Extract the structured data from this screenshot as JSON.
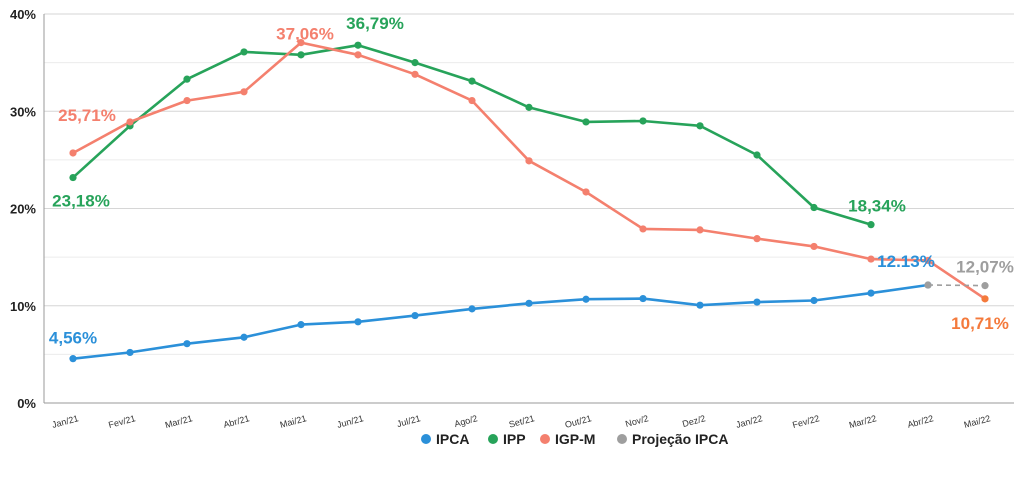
{
  "chart_data": {
    "type": "line",
    "categories": [
      "Jan/21",
      "Fev/21",
      "Mar/21",
      "Abr/21",
      "Mai/21",
      "Jun/21",
      "Jul/21",
      "Ago/2",
      "Set/21",
      "Out/21",
      "Nov/2",
      "Dez/2",
      "Jan/22",
      "Fev/22",
      "Mar/22",
      "Abr/22",
      "Mai/22"
    ],
    "ylim": [
      0,
      40
    ],
    "yticks": [
      {
        "value": 0,
        "label": "0%"
      },
      {
        "value": 10,
        "label": "10%"
      },
      {
        "value": 20,
        "label": "20%"
      },
      {
        "value": 30,
        "label": "30%"
      },
      {
        "value": 40,
        "label": "40%"
      }
    ],
    "grid": true,
    "legend_position": "bottom",
    "series": [
      {
        "name": "IPCA",
        "color": "#2b90d9",
        "values": [
          4.56,
          5.2,
          6.1,
          6.76,
          8.06,
          8.35,
          8.99,
          9.68,
          10.25,
          10.67,
          10.74,
          10.06,
          10.38,
          10.54,
          11.3,
          12.13,
          null
        ]
      },
      {
        "name": "IPP",
        "color": "#27a35a",
        "values": [
          23.18,
          28.5,
          33.3,
          36.1,
          35.8,
          36.79,
          35.0,
          33.1,
          30.4,
          28.9,
          29.0,
          28.5,
          25.5,
          20.1,
          18.34,
          null,
          null
        ]
      },
      {
        "name": "IGP-M",
        "color": "#f4806e",
        "values": [
          25.71,
          28.9,
          31.1,
          32.0,
          37.06,
          35.8,
          33.8,
          31.1,
          24.9,
          21.7,
          17.9,
          17.8,
          16.9,
          16.1,
          14.8,
          14.66,
          10.71
        ]
      },
      {
        "name": "Projeção IPCA",
        "color": "#9e9e9e",
        "values": [
          null,
          null,
          null,
          null,
          null,
          null,
          null,
          null,
          null,
          null,
          null,
          null,
          null,
          null,
          null,
          12.13,
          12.07
        ]
      }
    ],
    "annotations": [
      {
        "series": 0,
        "index": 0,
        "text": "4,56%",
        "color": "#2b90d9"
      },
      {
        "series": 0,
        "index": 15,
        "text": "12.13%",
        "color": "#2b90d9"
      },
      {
        "series": 1,
        "index": 0,
        "text": "23,18%",
        "color": "#27a35a"
      },
      {
        "series": 1,
        "index": 5,
        "text": "36,79%",
        "color": "#27a35a"
      },
      {
        "series": 1,
        "index": 14,
        "text": "18,34%",
        "color": "#27a35a"
      },
      {
        "series": 2,
        "index": 0,
        "text": "25,71%",
        "color": "#f4806e"
      },
      {
        "series": 2,
        "index": 4,
        "text": "37,06%",
        "color": "#f4806e"
      },
      {
        "series": 2,
        "index": 16,
        "text": "10,71%",
        "color": "#f47a3c"
      },
      {
        "series": 3,
        "index": 16,
        "text": "12,07%",
        "color": "#9e9e9e"
      }
    ]
  }
}
